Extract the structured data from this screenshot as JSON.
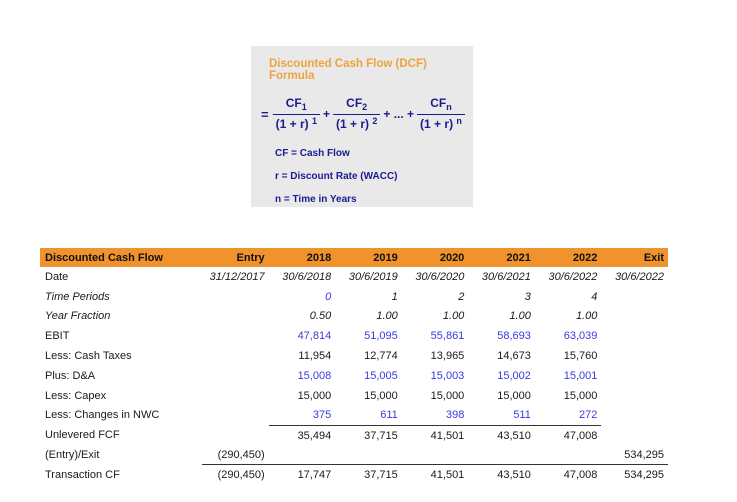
{
  "formula_box": {
    "title": "Discounted Cash Flow (DCF) Formula",
    "equals": "=",
    "terms": [
      {
        "num_base": "CF",
        "num_sub": "1",
        "den_base": "(1 + r)",
        "den_sup": "1"
      },
      {
        "num_base": "CF",
        "num_sub": "2",
        "den_base": "(1 + r)",
        "den_sup": "2"
      },
      {
        "num_base": "CF",
        "num_sub": "n",
        "den_base": "(1 + r)",
        "den_sup": "n"
      }
    ],
    "op_plus": "+",
    "op_ellipsis": "+ ... +",
    "legend": [
      "CF = Cash Flow",
      "r = Discount Rate (WACC)",
      "n = Time in Years"
    ]
  },
  "table": {
    "headers": [
      "Discounted Cash Flow",
      "Entry",
      "2018",
      "2019",
      "2020",
      "2021",
      "2022",
      "Exit"
    ],
    "rows": [
      {
        "label": "Date",
        "italic_label": false,
        "italic_values": true,
        "cells": [
          "31/12/2017",
          "30/6/2018",
          "30/6/2019",
          "30/6/2020",
          "30/6/2021",
          "30/6/2022",
          "30/6/2022"
        ]
      },
      {
        "label": "Time Periods",
        "italic_label": true,
        "italic_values": true,
        "cells": [
          "",
          "0",
          "1",
          "2",
          "3",
          "4",
          ""
        ],
        "cell_colors": [
          "",
          "blue",
          "black",
          "black",
          "black",
          "black",
          ""
        ]
      },
      {
        "label": "Year Fraction",
        "italic_label": true,
        "italic_values": true,
        "cells": [
          "",
          "0.50",
          "1.00",
          "1.00",
          "1.00",
          "1.00",
          ""
        ]
      },
      {
        "label": "EBIT",
        "color": "blue",
        "cells": [
          "",
          "47,814",
          "51,095",
          "55,861",
          "58,693",
          "63,039",
          ""
        ]
      },
      {
        "label": "Less: Cash Taxes",
        "cells": [
          "",
          "11,954",
          "12,774",
          "13,965",
          "14,673",
          "15,760",
          ""
        ]
      },
      {
        "label": "Plus: D&A",
        "color": "blue",
        "cells": [
          "",
          "15,008",
          "15,005",
          "15,003",
          "15,002",
          "15,001",
          ""
        ]
      },
      {
        "label": "Less: Capex",
        "cells": [
          "",
          "15,000",
          "15,000",
          "15,000",
          "15,000",
          "15,000",
          ""
        ]
      },
      {
        "label": "Less: Changes in NWC",
        "color": "blue",
        "cells": [
          "",
          "375",
          "611",
          "398",
          "511",
          "272",
          ""
        ],
        "underline": [
          1,
          2,
          3,
          4,
          5
        ]
      },
      {
        "label": "Unlevered FCF",
        "cells": [
          "",
          "35,494",
          "37,715",
          "41,501",
          "43,510",
          "47,008",
          ""
        ]
      },
      {
        "label": "(Entry)/Exit",
        "cells": [
          "(290,450)",
          "",
          "",
          "",
          "",
          "",
          "534,295"
        ],
        "underline": [
          0,
          1,
          2,
          3,
          4,
          5,
          6
        ]
      },
      {
        "label": "Transaction CF",
        "cells": [
          "(290,450)",
          "17,747",
          "37,715",
          "41,501",
          "43,510",
          "47,008",
          "534,295"
        ]
      }
    ]
  },
  "colors": {
    "header_orange": "#f0932c",
    "formula_title_orange": "#efa33c",
    "formula_navy": "#1b1b8f",
    "value_blue": "#3a3ae0",
    "box_gray": "#e9e9e9"
  }
}
